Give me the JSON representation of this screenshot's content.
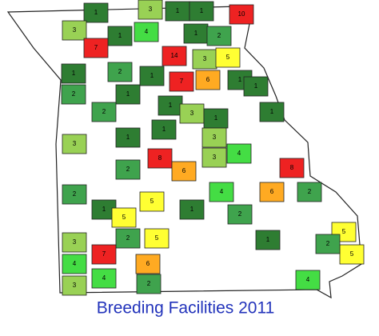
{
  "title": "Breeding Facilities 2011",
  "counties": [
    {
      "value": 1,
      "color": "#2e7d32"
    },
    {
      "value": 3,
      "color": "#99d155"
    },
    {
      "value": 1,
      "color": "#2e7d32"
    },
    {
      "value": 1,
      "color": "#2e7d32"
    },
    {
      "value": 10,
      "color": "#ee2222"
    },
    {
      "value": 3,
      "color": "#99d155"
    },
    {
      "value": 1,
      "color": "#2e7d32"
    },
    {
      "value": 4,
      "color": "#44dd44"
    },
    {
      "value": 1,
      "color": "#2e7d32"
    },
    {
      "value": 2,
      "color": "#3fa34d"
    },
    {
      "value": 7,
      "color": "#ee2222"
    },
    {
      "value": 14,
      "color": "#ee2222"
    },
    {
      "value": 3,
      "color": "#99d155"
    },
    {
      "value": 5,
      "color": "#ffff33"
    },
    {
      "value": 1,
      "color": "#2e7d32"
    },
    {
      "value": 2,
      "color": "#3fa34d"
    },
    {
      "value": 1,
      "color": "#2e7d32"
    },
    {
      "value": 7,
      "color": "#ee2222"
    },
    {
      "value": 6,
      "color": "#ffaa22"
    },
    {
      "value": 1,
      "color": "#2e7d32"
    },
    {
      "value": 2,
      "color": "#3fa34d"
    },
    {
      "value": 1,
      "color": "#2e7d32"
    },
    {
      "value": 1,
      "color": "#2e7d32"
    },
    {
      "value": 2,
      "color": "#3fa34d"
    },
    {
      "value": 1,
      "color": "#2e7d32"
    },
    {
      "value": 3,
      "color": "#99d155"
    },
    {
      "value": 1,
      "color": "#2e7d32"
    },
    {
      "value": 1,
      "color": "#2e7d32"
    },
    {
      "value": 3,
      "color": "#99d155"
    },
    {
      "value": 1,
      "color": "#2e7d32"
    },
    {
      "value": 1,
      "color": "#2e7d32"
    },
    {
      "value": 3,
      "color": "#99d155"
    },
    {
      "value": 4,
      "color": "#44dd44"
    },
    {
      "value": 8,
      "color": "#ee2222"
    },
    {
      "value": 6,
      "color": "#ffaa22"
    },
    {
      "value": 3,
      "color": "#99d155"
    },
    {
      "value": 8,
      "color": "#ee2222"
    },
    {
      "value": 6,
      "color": "#ffaa22"
    },
    {
      "value": 2,
      "color": "#3fa34d"
    },
    {
      "value": 2,
      "color": "#3fa34d"
    },
    {
      "value": 4,
      "color": "#44dd44"
    },
    {
      "value": 2,
      "color": "#3fa34d"
    },
    {
      "value": 1,
      "color": "#2e7d32"
    },
    {
      "value": 5,
      "color": "#ffff33"
    },
    {
      "value": 5,
      "color": "#ffff33"
    },
    {
      "value": 1,
      "color": "#2e7d32"
    },
    {
      "value": 2,
      "color": "#3fa34d"
    },
    {
      "value": 2,
      "color": "#3fa34d"
    },
    {
      "value": 5,
      "color": "#ffff33"
    },
    {
      "value": 3,
      "color": "#99d155"
    },
    {
      "value": 7,
      "color": "#ee2222"
    },
    {
      "value": 6,
      "color": "#ffaa22"
    },
    {
      "value": 1,
      "color": "#2e7d32"
    },
    {
      "value": 5,
      "color": "#ffff33"
    },
    {
      "value": 5,
      "color": "#ffff33"
    },
    {
      "value": 4,
      "color": "#44dd44"
    },
    {
      "value": 4,
      "color": "#44dd44"
    },
    {
      "value": 2,
      "color": "#3fa34d"
    },
    {
      "value": 3,
      "color": "#99d155"
    },
    {
      "value": 4,
      "color": "#44dd44"
    },
    {
      "value": 2,
      "color": "#3fa34d"
    }
  ]
}
